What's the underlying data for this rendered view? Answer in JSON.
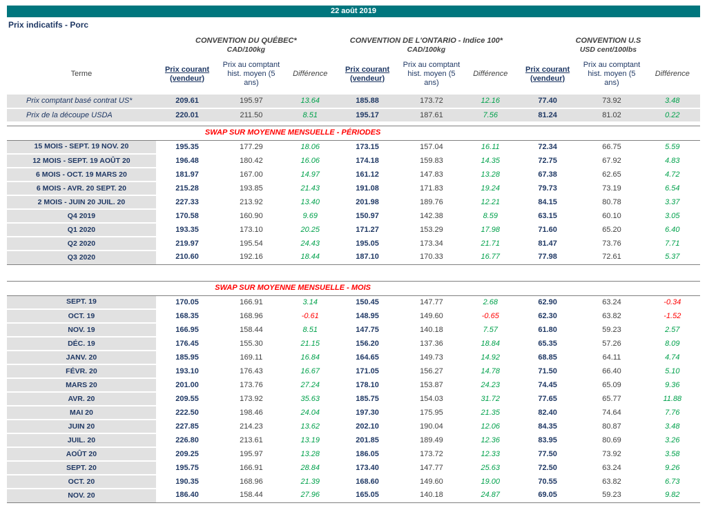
{
  "banner": {
    "date": "22 août 2019"
  },
  "page_title": "Prix indicatifs - Porc",
  "table": {
    "terme_label": "Terme",
    "groups": [
      {
        "title": "CONVENTION DU QUÉBEC*",
        "unit": "CAD/100kg"
      },
      {
        "title": "CONVENTION DE L'ONTARIO - Indice 100*",
        "unit": "CAD/100kg"
      },
      {
        "title": "CONVENTION U.S",
        "unit": "USD cent/100lbs"
      }
    ],
    "col_headers": {
      "current": "Prix courant (vendeur)",
      "hist": "Prix au comptant hist. moyen (5 ans)",
      "diff": "Différence"
    },
    "colors": {
      "banner": "#00767E",
      "navy": "#1F3864",
      "positive": "#00A14B",
      "negative": "#FF0000",
      "row_label_bg": "#E1E1E1"
    },
    "sections": [
      {
        "type": "rows",
        "row_style": "spot",
        "rows": [
          {
            "label": "Prix comptant basé contrat US*",
            "values": [
              "209.61",
              "195.97",
              "13.64",
              "185.88",
              "173.72",
              "12.16",
              "77.40",
              "73.92",
              "3.48"
            ]
          },
          {
            "label": "Prix de la découpe USDA",
            "values": [
              "220.01",
              "211.50",
              "8.51",
              "195.17",
              "187.61",
              "7.56",
              "81.24",
              "81.02",
              "0.22"
            ]
          }
        ]
      },
      {
        "type": "spacer",
        "size": "small"
      },
      {
        "type": "section_header",
        "title": "SWAP SUR MOYENNE MENSUELLE - PÉRIODES"
      },
      {
        "type": "rows",
        "row_style": "swap",
        "rows": [
          {
            "label": "15 MOIS - SEPT. 19 NOV. 20",
            "values": [
              "195.35",
              "177.29",
              "18.06",
              "173.15",
              "157.04",
              "16.11",
              "72.34",
              "66.75",
              "5.59"
            ]
          },
          {
            "label": "12 MOIS - SEPT. 19 AOÛT 20",
            "values": [
              "196.48",
              "180.42",
              "16.06",
              "174.18",
              "159.83",
              "14.35",
              "72.75",
              "67.92",
              "4.83"
            ]
          },
          {
            "label": "6 MOIS - OCT. 19 MARS 20",
            "values": [
              "181.97",
              "167.00",
              "14.97",
              "161.12",
              "147.83",
              "13.28",
              "67.38",
              "62.65",
              "4.72"
            ]
          },
          {
            "label": "6 MOIS - AVR. 20 SEPT. 20",
            "values": [
              "215.28",
              "193.85",
              "21.43",
              "191.08",
              "171.83",
              "19.24",
              "79.73",
              "73.19",
              "6.54"
            ]
          },
          {
            "label": "2 MOIS - JUIN 20 JUIL. 20",
            "values": [
              "227.33",
              "213.92",
              "13.40",
              "201.98",
              "189.76",
              "12.21",
              "84.15",
              "80.78",
              "3.37"
            ]
          },
          {
            "label": "Q4 2019",
            "values": [
              "170.58",
              "160.90",
              "9.69",
              "150.97",
              "142.38",
              "8.59",
              "63.15",
              "60.10",
              "3.05"
            ]
          },
          {
            "label": "Q1 2020",
            "values": [
              "193.35",
              "173.10",
              "20.25",
              "171.27",
              "153.29",
              "17.98",
              "71.60",
              "65.20",
              "6.40"
            ]
          },
          {
            "label": "Q2 2020",
            "values": [
              "219.97",
              "195.54",
              "24.43",
              "195.05",
              "173.34",
              "21.71",
              "81.47",
              "73.76",
              "7.71"
            ]
          },
          {
            "label": "Q3 2020",
            "values": [
              "210.60",
              "192.16",
              "18.44",
              "187.10",
              "170.33",
              "16.77",
              "77.98",
              "72.61",
              "5.37"
            ]
          }
        ]
      },
      {
        "type": "spacer",
        "size": "large"
      },
      {
        "type": "section_header",
        "title": "SWAP SUR MOYENNE MENSUELLE - MOIS"
      },
      {
        "type": "rows",
        "row_style": "swap",
        "rows": [
          {
            "label": "SEPT. 19",
            "values": [
              "170.05",
              "166.91",
              "3.14",
              "150.45",
              "147.77",
              "2.68",
              "62.90",
              "63.24",
              "-0.34"
            ]
          },
          {
            "label": "OCT. 19",
            "values": [
              "168.35",
              "168.96",
              "-0.61",
              "148.95",
              "149.60",
              "-0.65",
              "62.30",
              "63.82",
              "-1.52"
            ]
          },
          {
            "label": "NOV. 19",
            "values": [
              "166.95",
              "158.44",
              "8.51",
              "147.75",
              "140.18",
              "7.57",
              "61.80",
              "59.23",
              "2.57"
            ]
          },
          {
            "label": "DÉC. 19",
            "values": [
              "176.45",
              "155.30",
              "21.15",
              "156.20",
              "137.36",
              "18.84",
              "65.35",
              "57.26",
              "8.09"
            ]
          },
          {
            "label": "JANV. 20",
            "values": [
              "185.95",
              "169.11",
              "16.84",
              "164.65",
              "149.73",
              "14.92",
              "68.85",
              "64.11",
              "4.74"
            ]
          },
          {
            "label": "FÉVR. 20",
            "values": [
              "193.10",
              "176.43",
              "16.67",
              "171.05",
              "156.27",
              "14.78",
              "71.50",
              "66.40",
              "5.10"
            ]
          },
          {
            "label": "MARS 20",
            "values": [
              "201.00",
              "173.76",
              "27.24",
              "178.10",
              "153.87",
              "24.23",
              "74.45",
              "65.09",
              "9.36"
            ]
          },
          {
            "label": "AVR. 20",
            "values": [
              "209.55",
              "173.92",
              "35.63",
              "185.75",
              "154.03",
              "31.72",
              "77.65",
              "65.77",
              "11.88"
            ]
          },
          {
            "label": "MAI 20",
            "values": [
              "222.50",
              "198.46",
              "24.04",
              "197.30",
              "175.95",
              "21.35",
              "82.40",
              "74.64",
              "7.76"
            ]
          },
          {
            "label": "JUIN 20",
            "values": [
              "227.85",
              "214.23",
              "13.62",
              "202.10",
              "190.04",
              "12.06",
              "84.35",
              "80.87",
              "3.48"
            ]
          },
          {
            "label": "JUIL. 20",
            "values": [
              "226.80",
              "213.61",
              "13.19",
              "201.85",
              "189.49",
              "12.36",
              "83.95",
              "80.69",
              "3.26"
            ]
          },
          {
            "label": "AOÛT 20",
            "values": [
              "209.25",
              "195.97",
              "13.28",
              "186.05",
              "173.72",
              "12.33",
              "77.50",
              "73.92",
              "3.58"
            ]
          },
          {
            "label": "SEPT. 20",
            "values": [
              "195.75",
              "166.91",
              "28.84",
              "173.40",
              "147.77",
              "25.63",
              "72.50",
              "63.24",
              "9.26"
            ]
          },
          {
            "label": "OCT. 20",
            "values": [
              "190.35",
              "168.96",
              "21.39",
              "168.60",
              "149.60",
              "19.00",
              "70.55",
              "63.82",
              "6.73"
            ]
          },
          {
            "label": "NOV. 20",
            "values": [
              "186.40",
              "158.44",
              "27.96",
              "165.05",
              "140.18",
              "24.87",
              "69.05",
              "59.23",
              "9.82"
            ]
          }
        ]
      }
    ]
  }
}
